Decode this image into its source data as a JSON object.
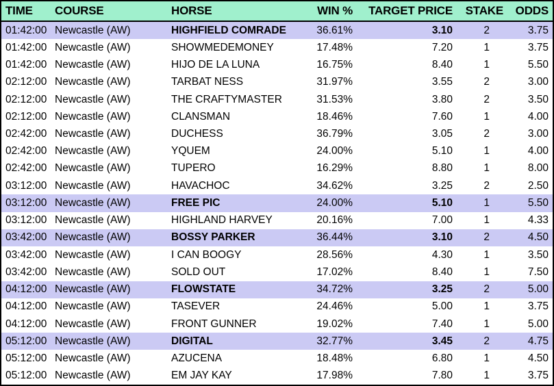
{
  "colors": {
    "header_bg": "#A0F0CD",
    "highlight_bg": "#CBCAF4",
    "row_bg": "#FFFFFF",
    "border": "#000000",
    "text": "#000000"
  },
  "table": {
    "columns": [
      {
        "label": "TIME"
      },
      {
        "label": "COURSE"
      },
      {
        "label": "HORSE"
      },
      {
        "label": "WIN %"
      },
      {
        "label": "TARGET PRICE"
      },
      {
        "label": "STAKE"
      },
      {
        "label": "ODDS"
      }
    ],
    "rows": [
      {
        "time": "01:42:00",
        "course": "Newcastle (AW)",
        "horse": "HIGHFIELD COMRADE",
        "win_pct": "36.61%",
        "target_price": "3.10",
        "stake": "2",
        "odds": "3.75",
        "highlighted": true
      },
      {
        "time": "01:42:00",
        "course": "Newcastle (AW)",
        "horse": "SHOWMEDEMONEY",
        "win_pct": "17.48%",
        "target_price": "7.20",
        "stake": "1",
        "odds": "3.75",
        "highlighted": false
      },
      {
        "time": "01:42:00",
        "course": "Newcastle (AW)",
        "horse": "HIJO DE LA LUNA",
        "win_pct": "16.75%",
        "target_price": "8.40",
        "stake": "1",
        "odds": "5.50",
        "highlighted": false
      },
      {
        "time": "02:12:00",
        "course": "Newcastle (AW)",
        "horse": "TARBAT NESS",
        "win_pct": "31.97%",
        "target_price": "3.55",
        "stake": "2",
        "odds": "3.00",
        "highlighted": false
      },
      {
        "time": "02:12:00",
        "course": "Newcastle (AW)",
        "horse": "THE CRAFTYMASTER",
        "win_pct": "31.53%",
        "target_price": "3.80",
        "stake": "2",
        "odds": "3.50",
        "highlighted": false
      },
      {
        "time": "02:12:00",
        "course": "Newcastle (AW)",
        "horse": "CLANSMAN",
        "win_pct": "18.46%",
        "target_price": "7.60",
        "stake": "1",
        "odds": "4.00",
        "highlighted": false
      },
      {
        "time": "02:42:00",
        "course": "Newcastle (AW)",
        "horse": "DUCHESS",
        "win_pct": "36.79%",
        "target_price": "3.05",
        "stake": "2",
        "odds": "3.00",
        "highlighted": false
      },
      {
        "time": "02:42:00",
        "course": "Newcastle (AW)",
        "horse": "YQUEM",
        "win_pct": "24.00%",
        "target_price": "5.10",
        "stake": "1",
        "odds": "4.00",
        "highlighted": false
      },
      {
        "time": "02:42:00",
        "course": "Newcastle (AW)",
        "horse": "TUPERO",
        "win_pct": "16.29%",
        "target_price": "8.80",
        "stake": "1",
        "odds": "8.00",
        "highlighted": false
      },
      {
        "time": "03:12:00",
        "course": "Newcastle (AW)",
        "horse": "HAVACHOC",
        "win_pct": "34.62%",
        "target_price": "3.25",
        "stake": "2",
        "odds": "2.50",
        "highlighted": false
      },
      {
        "time": "03:12:00",
        "course": "Newcastle (AW)",
        "horse": "FREE PIC",
        "win_pct": "24.00%",
        "target_price": "5.10",
        "stake": "1",
        "odds": "5.50",
        "highlighted": true
      },
      {
        "time": "03:12:00",
        "course": "Newcastle (AW)",
        "horse": "HIGHLAND HARVEY",
        "win_pct": "20.16%",
        "target_price": "7.00",
        "stake": "1",
        "odds": "4.33",
        "highlighted": false
      },
      {
        "time": "03:42:00",
        "course": "Newcastle (AW)",
        "horse": "BOSSY PARKER",
        "win_pct": "36.44%",
        "target_price": "3.10",
        "stake": "2",
        "odds": "4.50",
        "highlighted": true
      },
      {
        "time": "03:42:00",
        "course": "Newcastle (AW)",
        "horse": "I CAN BOOGY",
        "win_pct": "28.56%",
        "target_price": "4.30",
        "stake": "1",
        "odds": "3.50",
        "highlighted": false
      },
      {
        "time": "03:42:00",
        "course": "Newcastle (AW)",
        "horse": "SOLD OUT",
        "win_pct": "17.02%",
        "target_price": "8.40",
        "stake": "1",
        "odds": "7.50",
        "highlighted": false
      },
      {
        "time": "04:12:00",
        "course": "Newcastle (AW)",
        "horse": "FLOWSTATE",
        "win_pct": "34.72%",
        "target_price": "3.25",
        "stake": "2",
        "odds": "5.00",
        "highlighted": true
      },
      {
        "time": "04:12:00",
        "course": "Newcastle (AW)",
        "horse": "TASEVER",
        "win_pct": "24.46%",
        "target_price": "5.00",
        "stake": "1",
        "odds": "3.75",
        "highlighted": false
      },
      {
        "time": "04:12:00",
        "course": "Newcastle (AW)",
        "horse": "FRONT GUNNER",
        "win_pct": "19.02%",
        "target_price": "7.40",
        "stake": "1",
        "odds": "5.00",
        "highlighted": false
      },
      {
        "time": "05:12:00",
        "course": "Newcastle (AW)",
        "horse": "DIGITAL",
        "win_pct": "32.77%",
        "target_price": "3.45",
        "stake": "2",
        "odds": "4.75",
        "highlighted": true
      },
      {
        "time": "05:12:00",
        "course": "Newcastle (AW)",
        "horse": "AZUCENA",
        "win_pct": "18.48%",
        "target_price": "6.80",
        "stake": "1",
        "odds": "4.50",
        "highlighted": false
      },
      {
        "time": "05:12:00",
        "course": "Newcastle (AW)",
        "horse": "EM JAY KAY",
        "win_pct": "17.98%",
        "target_price": "7.80",
        "stake": "1",
        "odds": "3.75",
        "highlighted": false
      }
    ]
  }
}
